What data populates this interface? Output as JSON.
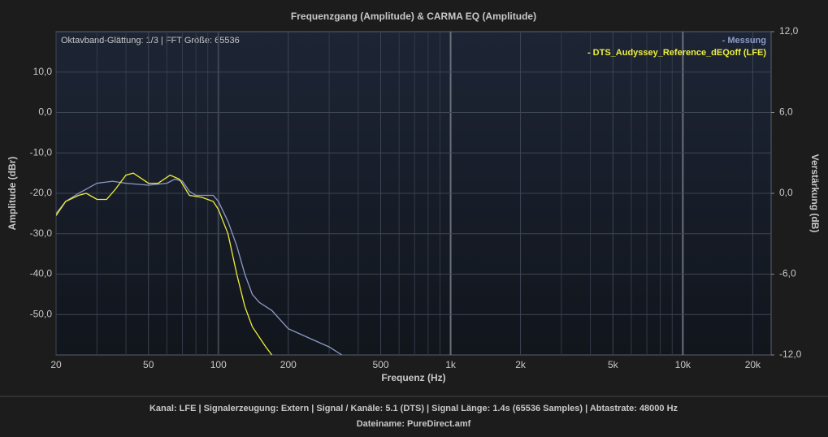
{
  "chart_data": {
    "type": "line",
    "title": "Frequenzgang (Amplitude) & CARMA EQ (Amplitude)",
    "annotation": "Oktavband-Glättung: 1/3 | FFT Größe: 65536",
    "xlabel": "Frequenz (Hz)",
    "ylabel": "Amplitude (dBr)",
    "y2label": "Verstärkung (dB)",
    "xscale": "log",
    "grid": true,
    "legend": "top-right",
    "xlim": [
      20,
      24000
    ],
    "xticks": [
      20,
      50,
      100,
      200,
      500,
      {
        "value": 1000,
        "label": "1k"
      },
      {
        "value": 2000,
        "label": "2k"
      },
      {
        "value": 5000,
        "label": "5k"
      },
      {
        "value": 10000,
        "label": "10k"
      },
      {
        "value": 20000,
        "label": "20k"
      }
    ],
    "xminorticks": [
      30,
      40,
      60,
      70,
      80,
      90,
      300,
      400,
      600,
      700,
      800,
      900,
      3000,
      4000,
      6000,
      7000,
      8000,
      9000
    ],
    "ylim": [
      -60,
      20
    ],
    "yticks": [
      {
        "value": 10,
        "label": "10,0"
      },
      {
        "value": 0,
        "label": "0,0"
      },
      {
        "value": -10,
        "label": "-10,0"
      },
      {
        "value": -20,
        "label": "-20,0"
      },
      {
        "value": -30,
        "label": "-30,0"
      },
      {
        "value": -40,
        "label": "-40,0"
      },
      {
        "value": -50,
        "label": "-50,0"
      }
    ],
    "y2lim": [
      -12,
      12
    ],
    "y2ticks": [
      {
        "value": 12,
        "label": "12,0"
      },
      {
        "value": 6,
        "label": "6,0"
      },
      {
        "value": 0,
        "label": "0,0"
      },
      {
        "value": -6,
        "label": "-6,0"
      },
      {
        "value": -12,
        "label": "-12,0"
      }
    ],
    "series": [
      {
        "name": "- Messung",
        "color": "#8d9ac8",
        "x": [
          20,
          22,
          25,
          30,
          35,
          40,
          50,
          60,
          65,
          70,
          75,
          80,
          90,
          95,
          100,
          110,
          120,
          130,
          140,
          150,
          170,
          200,
          250,
          300,
          340
        ],
        "values": [
          -25,
          -22,
          -20,
          -17.5,
          -17,
          -17.5,
          -18,
          -17.5,
          -16.5,
          -17,
          -19.5,
          -20.5,
          -20.5,
          -20.5,
          -22,
          -27,
          -33,
          -40,
          -45,
          -47,
          -49,
          -53.5,
          -56,
          -58,
          -60
        ]
      },
      {
        "name": "- DTS_Audyssey_Reference_dEQoff (LFE)",
        "color": "#eeee3c",
        "x": [
          20,
          22,
          25,
          27,
          30,
          33,
          36,
          40,
          43,
          50,
          55,
          62,
          68,
          75,
          85,
          95,
          100,
          110,
          120,
          130,
          140,
          160,
          170
        ],
        "values": [
          -25.5,
          -22,
          -20.5,
          -20,
          -21.5,
          -21.5,
          -19,
          -15.5,
          -15,
          -17.5,
          -17.5,
          -15.5,
          -16.5,
          -20.5,
          -21,
          -22,
          -24,
          -30,
          -40,
          -48,
          -53,
          -58,
          -60
        ]
      }
    ],
    "footer": [
      "Kanal: LFE  |  Signalerzeugung: Extern   |  Signal / Kanäle: 5.1 (DTS)  |  Signal Länge: 1.4s (65536 Samples)  |  Abtastrate: 48000 Hz",
      "Dateiname: PureDirect.amf"
    ]
  }
}
